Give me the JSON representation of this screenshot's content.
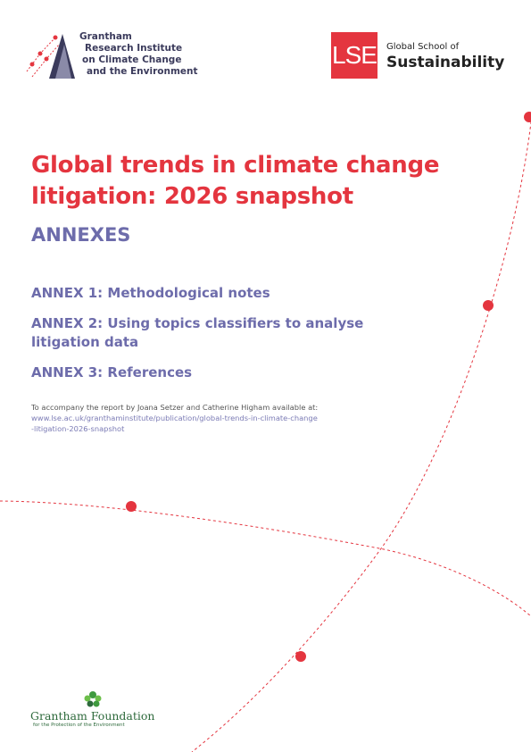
{
  "header": {
    "grantham_logo": [
      "Grantham",
      "Research Institute",
      "on Climate Change",
      "and the Environment"
    ],
    "lse_logo": {
      "mark": "LSE",
      "line1": "Global School of",
      "line2": "Sustainability"
    }
  },
  "title": [
    "Global trends in climate change",
    "litigation: 2026 snapshot"
  ],
  "subtitle": "ANNEXES",
  "annexes": [
    [
      "ANNEX 1: Methodological notes"
    ],
    [
      "ANNEX 2: Using topics classifiers to analyse",
      "litigation data"
    ],
    [
      "ANNEX 3: References"
    ]
  ],
  "note": {
    "text": "To accompany the report by Joana Setzer and Catherine Higham available at:",
    "url": [
      "www.lse.ac.uk/granthaminstitute/publication/global-trends-in-climate-change",
      "-litigation-2026-snapshot"
    ]
  },
  "footer": {
    "name": "Grantham Foundation",
    "tagline": "for the Protection of the Environment"
  }
}
